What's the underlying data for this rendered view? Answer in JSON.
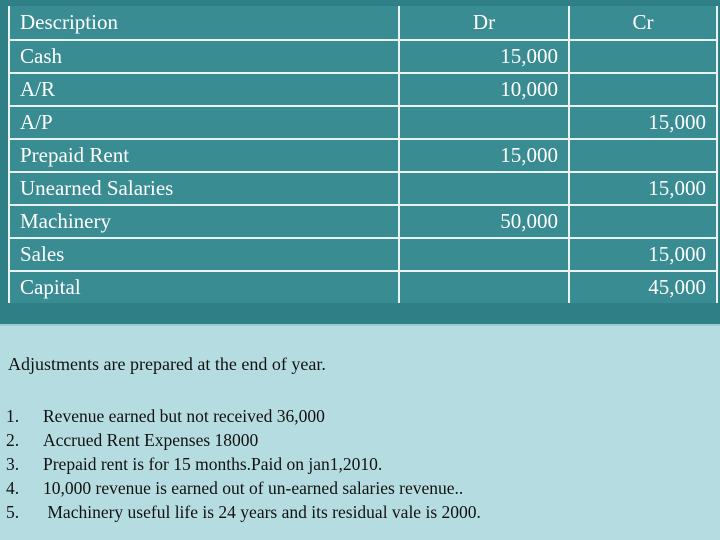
{
  "table": {
    "headers": {
      "description": "Description",
      "dr": "Dr",
      "cr": "Cr"
    },
    "rows": [
      {
        "description": "Cash",
        "dr": "15,000",
        "cr": ""
      },
      {
        "description": "A/R",
        "dr": "10,000",
        "cr": ""
      },
      {
        "description": "A/P",
        "dr": "",
        "cr": "15,000"
      },
      {
        "description": "Prepaid Rent",
        "dr": "15,000",
        "cr": ""
      },
      {
        "description": "Unearned Salaries",
        "dr": "",
        "cr": "15,000"
      },
      {
        "description": "Machinery",
        "dr": "50,000",
        "cr": ""
      },
      {
        "description": "Sales",
        "dr": "",
        "cr": "15,000"
      },
      {
        "description": "Capital",
        "dr": "",
        "cr": "45,000"
      }
    ]
  },
  "adjustments": {
    "title": "Adjustments are prepared at the end of year.",
    "items": [
      {
        "num": "1.",
        "text": "Revenue earned but not received 36,000"
      },
      {
        "num": "2.",
        "text": "Accrued Rent Expenses 18000"
      },
      {
        "num": "3.",
        "text": "Prepaid rent is for 15 months.Paid on jan1,2010."
      },
      {
        "num": "4.",
        "text": "10,000 revenue is earned out of un-earned salaries revenue.."
      },
      {
        "num": "5.",
        "text": " Machinery useful life is 24 years and its residual vale is 2000."
      }
    ]
  },
  "colors": {
    "table_bg": "#3a8c93",
    "notes_bg": "#b5dde1"
  }
}
